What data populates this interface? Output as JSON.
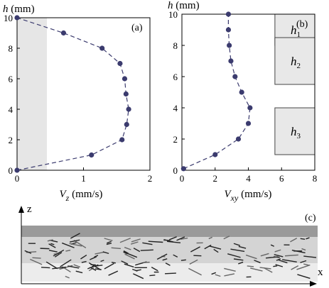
{
  "chart_data": [
    {
      "panel": "(a)",
      "type": "line",
      "series_style": "dashed line with filled circle markers",
      "ylabel_var": "h",
      "ylabel_unit": "(mm)",
      "xlabel_var": "V",
      "xlabel_sub": "z",
      "xlabel_unit": "(mm/s)",
      "xlim": [
        0,
        2
      ],
      "ylim": [
        0,
        10
      ],
      "xticks": [
        "0",
        "1",
        "2"
      ],
      "yticks": [
        "0",
        "2",
        "4",
        "6",
        "8",
        "10"
      ],
      "shaded_region_x": [
        0,
        0.45
      ],
      "points": [
        {
          "x": 0.0,
          "y": 0.0
        },
        {
          "x": 1.12,
          "y": 1.0
        },
        {
          "x": 1.58,
          "y": 2.0
        },
        {
          "x": 1.65,
          "y": 3.0
        },
        {
          "x": 1.68,
          "y": 4.0
        },
        {
          "x": 1.64,
          "y": 5.0
        },
        {
          "x": 1.62,
          "y": 6.0
        },
        {
          "x": 1.55,
          "y": 7.0
        },
        {
          "x": 1.28,
          "y": 8.0
        },
        {
          "x": 0.7,
          "y": 9.0
        },
        {
          "x": 0.0,
          "y": 10.0
        }
      ],
      "colors": {
        "marker": "#3b3b6e",
        "line": "#3b3b6e",
        "shade": "#e6e6e6"
      }
    },
    {
      "panel": "(b)",
      "type": "line",
      "series_style": "dashed line with filled circle markers",
      "ylabel_var": "h",
      "ylabel_unit": "(mm)",
      "xlabel_var": "V",
      "xlabel_sub": "xy",
      "xlabel_unit": "(mm/s)",
      "xlim": [
        0,
        8
      ],
      "ylim": [
        0,
        10
      ],
      "xticks": [
        "0",
        "2",
        "4",
        "6",
        "8"
      ],
      "yticks": [
        "0",
        "2",
        "4",
        "6",
        "8",
        "10"
      ],
      "points": [
        {
          "x": 0.1,
          "y": 0.1
        },
        {
          "x": 2.0,
          "y": 1.0
        },
        {
          "x": 3.4,
          "y": 2.0
        },
        {
          "x": 4.0,
          "y": 3.0
        },
        {
          "x": 4.1,
          "y": 4.0
        },
        {
          "x": 3.6,
          "y": 5.0
        },
        {
          "x": 3.2,
          "y": 6.0
        },
        {
          "x": 2.95,
          "y": 7.0
        },
        {
          "x": 2.85,
          "y": 8.0
        },
        {
          "x": 2.8,
          "y": 9.0
        },
        {
          "x": 2.8,
          "y": 10.0
        }
      ],
      "zones": [
        {
          "var": "h",
          "sub": "1",
          "x_range": [
            5,
            8
          ],
          "y_range": [
            8,
            10
          ]
        },
        {
          "var": "h",
          "sub": "2",
          "x_range": [
            5,
            8
          ],
          "y_range": [
            5.5,
            8.5
          ]
        },
        {
          "var": "h",
          "sub": "3",
          "x_range": [
            5,
            8
          ],
          "y_range": [
            1.0,
            4.0
          ]
        }
      ],
      "colors": {
        "marker": "#3b3b6e",
        "line": "#3b3b6e",
        "zone_fill": "#e8e8e8"
      }
    },
    {
      "panel": "(c)",
      "type": "image",
      "axis_z": "z",
      "axis_x": "x",
      "description_tag": "particle streak image"
    }
  ]
}
